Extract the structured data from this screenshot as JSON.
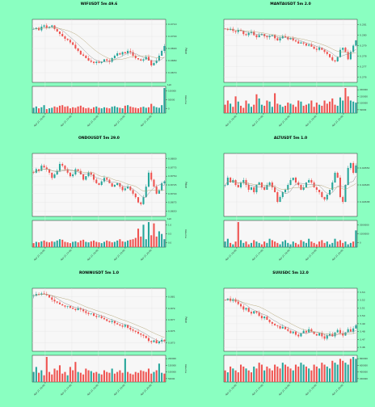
{
  "colors": {
    "background": "#8affc1",
    "up": "#26a69a",
    "down": "#ef5350",
    "ma": "#888888"
  },
  "y_axis_label": "Price",
  "volume_axis_label": "Volume",
  "chart_data": [
    {
      "type": "candlestick",
      "title": "WIFUSDT 5m 49.6",
      "x_ticks": [
        "Apr 21 16:00",
        "Apr 21 17:00",
        "Apr 21 18:00",
        "Apr 21 19:00",
        "Apr 21 20:00"
      ],
      "y_ticks": [
        "0.0710",
        "0.0700",
        "0.0690",
        "0.0680",
        "0.0670"
      ],
      "volume_ticks": [
        "0",
        "50000",
        "100000"
      ],
      "volume_exponent": "1e6",
      "ylim": [
        0.0662,
        0.0714
      ],
      "closes": [
        0.0706,
        0.0707,
        0.0705,
        0.0708,
        0.0709,
        0.0707,
        0.0708,
        0.0709,
        0.0706,
        0.0704,
        0.0702,
        0.07,
        0.0698,
        0.0697,
        0.0695,
        0.0693,
        0.069,
        0.0688,
        0.0685,
        0.0684,
        0.0682,
        0.068,
        0.0679,
        0.0678,
        0.0679,
        0.0678,
        0.0679,
        0.0681,
        0.068,
        0.0679,
        0.0682,
        0.0684,
        0.0686,
        0.0685,
        0.0687,
        0.0686,
        0.0688,
        0.0687,
        0.0684,
        0.0682,
        0.0681,
        0.068,
        0.0681,
        0.0683,
        0.068,
        0.0676,
        0.0678,
        0.068,
        0.0684,
        0.0688,
        0.0692
      ],
      "volumes": [
        20,
        25,
        18,
        22,
        30,
        15,
        18,
        20,
        25,
        22,
        28,
        30,
        24,
        26,
        18,
        22,
        20,
        25,
        28,
        22,
        18,
        20,
        16,
        22,
        25,
        20,
        18,
        22,
        20,
        18,
        24,
        26,
        22,
        20,
        18,
        28,
        30,
        25,
        22,
        20,
        18,
        22,
        24,
        20,
        22,
        35,
        26,
        22,
        20,
        30,
        95
      ]
    },
    {
      "type": "candlestick",
      "title": "MANTAUSDT 5m 2.0",
      "x_ticks": [
        "Apr 21 16:00",
        "Apr 21 17:00",
        "Apr 21 18:00",
        "Apr 21 19:00",
        "Apr 21 20:00"
      ],
      "y_ticks": [
        "0.281",
        "0.280",
        "0.279",
        "0.278",
        "0.277",
        "0.276"
      ],
      "volume_ticks": [
        "50000",
        "100000",
        "150000",
        "200000"
      ],
      "volume_exponent": "",
      "ylim": [
        0.2755,
        0.2815
      ],
      "closes": [
        0.2806,
        0.2805,
        0.2806,
        0.2804,
        0.2803,
        0.2805,
        0.2804,
        0.2801,
        0.28,
        0.2802,
        0.2803,
        0.28,
        0.2798,
        0.28,
        0.2801,
        0.2799,
        0.2798,
        0.2799,
        0.28,
        0.2797,
        0.2795,
        0.2797,
        0.2799,
        0.2798,
        0.2796,
        0.2797,
        0.2795,
        0.2794,
        0.2792,
        0.2793,
        0.2792,
        0.279,
        0.2791,
        0.2789,
        0.2787,
        0.2786,
        0.2788,
        0.2786,
        0.2784,
        0.2782,
        0.2779,
        0.2776,
        0.2775,
        0.2779,
        0.2786,
        0.2788,
        0.2784,
        0.2777,
        0.2784,
        0.279,
        0.2795
      ],
      "volumes": [
        40,
        60,
        45,
        30,
        80,
        55,
        35,
        25,
        60,
        45,
        30,
        40,
        90,
        70,
        40,
        35,
        60,
        55,
        30,
        95,
        45,
        40,
        30,
        35,
        50,
        45,
        40,
        30,
        60,
        55,
        35,
        40,
        45,
        60,
        30,
        50,
        40,
        35,
        60,
        45,
        55,
        70,
        40,
        35,
        75,
        60,
        120,
        80,
        60,
        55,
        50
      ]
    },
    {
      "type": "candlestick",
      "title": "ONDOUSDT 5m 29.0",
      "x_ticks": [
        "Apr 21 16:00",
        "Apr 21 17:00",
        "Apr 21 18:00",
        "Apr 21 19:00",
        "Apr 21 20:00"
      ],
      "y_ticks": [
        "0.8800",
        "0.8775",
        "0.8750",
        "0.8725",
        "0.8700",
        "0.8675",
        "0.8650"
      ],
      "volume_ticks": [
        "0.0",
        "0.5",
        "1.0"
      ],
      "volume_exponent": "1e6",
      "ylim": [
        0.8635,
        0.8815
      ],
      "closes": [
        0.876,
        0.877,
        0.8765,
        0.878,
        0.8775,
        0.877,
        0.876,
        0.8745,
        0.8755,
        0.8765,
        0.8785,
        0.878,
        0.877,
        0.876,
        0.875,
        0.8755,
        0.877,
        0.8765,
        0.8755,
        0.874,
        0.875,
        0.876,
        0.8755,
        0.874,
        0.873,
        0.8725,
        0.8735,
        0.8745,
        0.874,
        0.873,
        0.872,
        0.8725,
        0.873,
        0.872,
        0.871,
        0.8715,
        0.872,
        0.871,
        0.87,
        0.869,
        0.8675,
        0.867,
        0.869,
        0.872,
        0.876,
        0.874,
        0.872,
        0.87,
        0.871,
        0.873,
        0.8735
      ],
      "volumes": [
        15,
        20,
        18,
        22,
        25,
        20,
        18,
        22,
        20,
        25,
        30,
        28,
        20,
        18,
        15,
        20,
        22,
        18,
        25,
        28,
        20,
        18,
        22,
        25,
        20,
        18,
        15,
        20,
        25,
        22,
        18,
        20,
        25,
        30,
        22,
        20,
        25,
        28,
        30,
        35,
        70,
        40,
        85,
        30,
        95,
        45,
        90,
        40,
        60,
        50,
        30
      ]
    },
    {
      "type": "candlestick",
      "title": "ALTUSDT 5m 1.0",
      "x_ticks": [
        "Apr 21 16:00",
        "Apr 21 17:00",
        "Apr 21 18:00",
        "Apr 21 19:00",
        "Apr 21 20:00"
      ],
      "y_ticks": [
        "0.02652",
        "0.02645",
        "0.02638"
      ],
      "volume_ticks": [
        "0",
        "1000000",
        "2000000"
      ],
      "volume_exponent": "",
      "ylim": [
        0.02632,
        0.02658
      ],
      "closes": [
        0.02645,
        0.02648,
        0.02646,
        0.02647,
        0.02645,
        0.02644,
        0.02646,
        0.02647,
        0.02645,
        0.02643,
        0.02644,
        0.02642,
        0.02645,
        0.02646,
        0.02644,
        0.02643,
        0.02645,
        0.02646,
        0.02644,
        0.02642,
        0.02638,
        0.0264,
        0.02642,
        0.02643,
        0.02645,
        0.02647,
        0.02648,
        0.02646,
        0.02645,
        0.02643,
        0.02644,
        0.02646,
        0.02647,
        0.02646,
        0.02644,
        0.02643,
        0.02642,
        0.0264,
        0.02639,
        0.02641,
        0.02643,
        0.02646,
        0.0265,
        0.02648,
        0.0264,
        0.02638,
        0.02645,
        0.02652,
        0.02654,
        0.0265,
        0.02653
      ],
      "volumes": [
        20,
        30,
        15,
        10,
        20,
        90,
        25,
        15,
        20,
        10,
        15,
        25,
        20,
        15,
        10,
        20,
        15,
        30,
        25,
        20,
        15,
        10,
        20,
        25,
        15,
        10,
        20,
        15,
        10,
        25,
        20,
        15,
        30,
        20,
        15,
        10,
        20,
        25,
        15,
        20,
        10,
        15,
        30,
        20,
        25,
        15,
        20,
        10,
        15,
        20,
        60
      ]
    },
    {
      "type": "candlestick",
      "title": "RONINUSDT 5m 1.0",
      "x_ticks": [
        "Apr 21 16:00",
        "Apr 21 17:00",
        "Apr 21 18:00",
        "Apr 21 19:00",
        "Apr 21 20:00"
      ],
      "y_ticks": [
        "0.881",
        "0.879",
        "0.877",
        "0.875",
        "0.873"
      ],
      "volume_ticks": [
        "50000",
        "100000",
        "150000",
        "200000"
      ],
      "volume_exponent": "",
      "ylim": [
        0.8715,
        0.8825
      ],
      "closes": [
        0.8812,
        0.8815,
        0.8814,
        0.8816,
        0.8815,
        0.8813,
        0.8809,
        0.8805,
        0.8802,
        0.88,
        0.8797,
        0.8795,
        0.8793,
        0.8794,
        0.8791,
        0.8789,
        0.8787,
        0.879,
        0.8788,
        0.8785,
        0.8782,
        0.878,
        0.8781,
        0.8777,
        0.8775,
        0.8776,
        0.8773,
        0.8771,
        0.8768,
        0.8766,
        0.8768,
        0.8764,
        0.8762,
        0.876,
        0.8758,
        0.8761,
        0.8756,
        0.8753,
        0.8751,
        0.8749,
        0.8746,
        0.8744,
        0.8742,
        0.8738,
        0.8733,
        0.8731,
        0.8734,
        0.8729,
        0.8732,
        0.8735,
        0.8733
      ],
      "volumes": [
        60,
        90,
        55,
        70,
        40,
        150,
        60,
        45,
        80,
        70,
        100,
        50,
        60,
        40,
        90,
        70,
        120,
        60,
        55,
        45,
        80,
        70,
        65,
        55,
        60,
        50,
        45,
        70,
        60,
        55,
        80,
        50,
        60,
        70,
        55,
        140,
        60,
        50,
        45,
        60,
        55,
        70,
        65,
        60,
        80,
        50,
        60,
        70,
        110,
        55,
        50
      ]
    },
    {
      "type": "candlestick",
      "title": "SUIUSDC 5m 12.0",
      "x_ticks": [
        "Apr 21 16:00",
        "Apr 21 17:00",
        "Apr 21 18:00",
        "Apr 21 19:00",
        "Apr 21 20:00"
      ],
      "y_ticks": [
        "3.53",
        "3.52",
        "3.51",
        "3.50",
        "3.49",
        "3.48",
        "3.47",
        "3.46"
      ],
      "volume_ticks": [
        "200000",
        "400000",
        "600000",
        "800000"
      ],
      "volume_exponent": "",
      "ylim": [
        3.455,
        3.535
      ],
      "closes": [
        3.52,
        3.522,
        3.519,
        3.521,
        3.518,
        3.515,
        3.512,
        3.508,
        3.51,
        3.505,
        3.503,
        3.506,
        3.504,
        3.5,
        3.497,
        3.499,
        3.495,
        3.492,
        3.49,
        3.488,
        3.487,
        3.484,
        3.486,
        3.483,
        3.481,
        3.478,
        3.48,
        3.476,
        3.474,
        3.478,
        3.481,
        3.479,
        3.483,
        3.48,
        3.477,
        3.475,
        3.478,
        3.474,
        3.471,
        3.475,
        3.477,
        3.474,
        3.479,
        3.482,
        3.478,
        3.475,
        3.479,
        3.483,
        3.48,
        3.484,
        3.488
      ],
      "volumes": [
        30,
        25,
        40,
        35,
        30,
        25,
        45,
        40,
        35,
        30,
        25,
        40,
        35,
        50,
        45,
        30,
        40,
        35,
        30,
        45,
        40,
        35,
        50,
        45,
        40,
        35,
        30,
        45,
        40,
        50,
        45,
        40,
        35,
        30,
        45,
        40,
        35,
        50,
        45,
        40,
        35,
        55,
        50,
        45,
        60,
        55,
        50,
        45,
        60,
        65,
        60
      ]
    }
  ]
}
